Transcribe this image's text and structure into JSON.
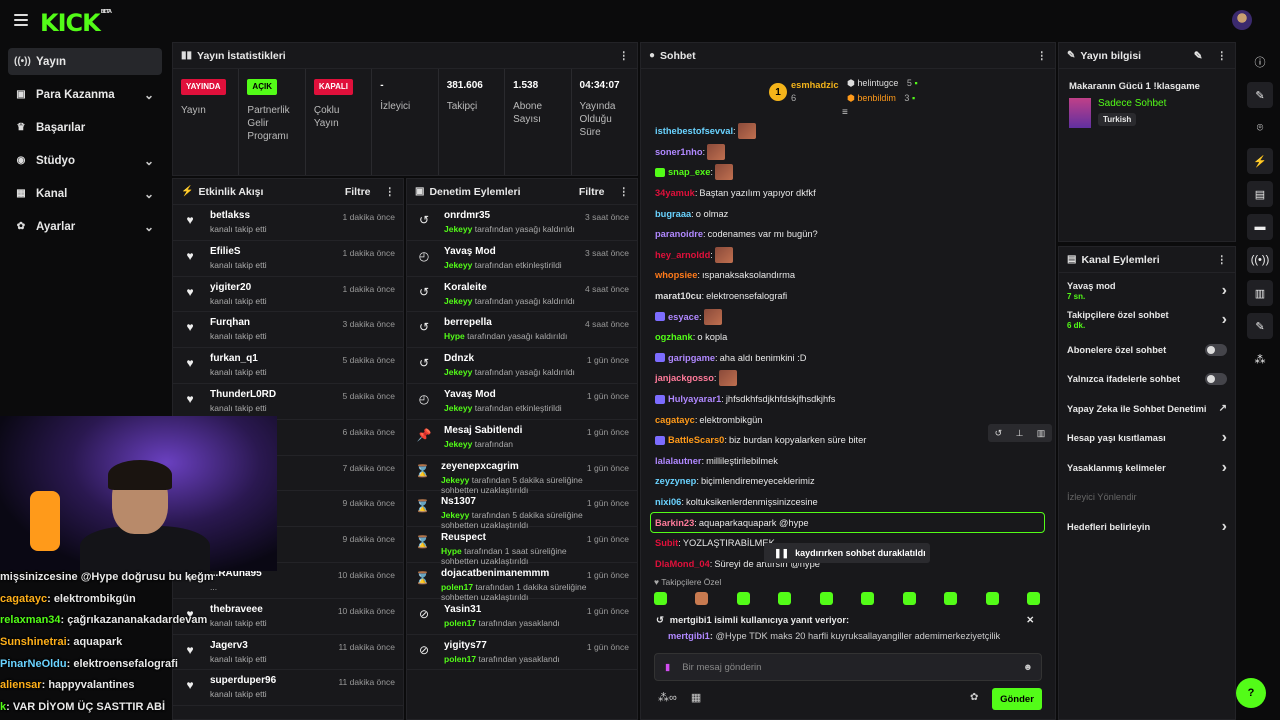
{
  "brand": {
    "logo": "KICK",
    "beta": "BETA"
  },
  "sidebar": {
    "items": [
      {
        "label": "Yayın",
        "icon": "broadcast-icon",
        "active": true,
        "chev": ""
      },
      {
        "label": "Para Kazanma",
        "icon": "money-icon",
        "active": false,
        "chev": "⌄"
      },
      {
        "label": "Başarılar",
        "icon": "trophy-icon",
        "active": false,
        "chev": ""
      },
      {
        "label": "Stüdyo",
        "icon": "studio-icon",
        "active": false,
        "chev": "⌄"
      },
      {
        "label": "Kanal",
        "icon": "channel-icon",
        "active": false,
        "chev": "⌄"
      },
      {
        "label": "Ayarlar",
        "icon": "gear-icon",
        "active": false,
        "chev": "⌄"
      }
    ]
  },
  "stats": {
    "title": "Yayın İstatistikleri",
    "items": [
      {
        "badge": "YAYINDA",
        "badge_color": "#e0103b",
        "label": "Yayın"
      },
      {
        "badge": "AÇIK",
        "badge_color": "#53fc18",
        "label": "Partnerlik Gelir Programı"
      },
      {
        "badge": "KAPALI",
        "badge_color": "#e0103b",
        "label": "Çoklu Yayın"
      },
      {
        "val": "-",
        "label": "İzleyici"
      },
      {
        "val": "381.606",
        "label": "Takipçi"
      },
      {
        "val": "1.538",
        "label": "Abone Sayısı"
      },
      {
        "val": "04:34:07",
        "label": "Yayında Olduğu Süre"
      }
    ]
  },
  "activity": {
    "title": "Etkinlik Akışı",
    "filter": "Filtre",
    "rows": [
      {
        "name": "betlakss",
        "sub": "kanalı takip etti",
        "time": "1 dakika önce"
      },
      {
        "name": "EfilieS",
        "sub": "kanalı takip etti",
        "time": "1 dakika önce"
      },
      {
        "name": "yigiter20",
        "sub": "kanalı takip etti",
        "time": "1 dakika önce"
      },
      {
        "name": "Furqhan",
        "sub": "kanalı takip etti",
        "time": "3 dakika önce"
      },
      {
        "name": "furkan_q1",
        "sub": "kanalı takip etti",
        "time": "5 dakika önce"
      },
      {
        "name": "ThunderL0RD",
        "sub": "kanalı takip etti",
        "time": "5 dakika önce"
      },
      {
        "name": "",
        "sub": "",
        "time": "6 dakika önce"
      },
      {
        "name": "",
        "sub": "",
        "time": "7 dakika önce"
      },
      {
        "name": "",
        "sub": "",
        "time": "9 dakika önce"
      },
      {
        "name": "",
        "sub": "",
        "time": "9 dakika önce"
      },
      {
        "name": "...RAuha95",
        "sub": "...",
        "time": "10 dakika önce"
      },
      {
        "name": "thebraveee",
        "sub": "kanalı takip etti",
        "time": "10 dakika önce"
      },
      {
        "name": "Jagerv3",
        "sub": "kanalı takip etti",
        "time": "11 dakika önce"
      },
      {
        "name": "superduper96",
        "sub": "kanalı takip etti",
        "time": "11 dakika önce"
      }
    ]
  },
  "moderation": {
    "title": "Denetim Eylemleri",
    "filter": "Filtre",
    "rows": [
      {
        "icon": "↺",
        "name": "onrdmr35",
        "actor": "Jekeyy",
        "sub": "tarafından yasağı kaldırıldı",
        "time": "3 saat önce"
      },
      {
        "icon": "◴",
        "name": "Yavaş Mod",
        "actor": "Jekeyy",
        "sub": "tarafından etkinleştirildi",
        "time": "3 saat önce"
      },
      {
        "icon": "↺",
        "name": "Koraleite",
        "actor": "Jekeyy",
        "sub": "tarafından yasağı kaldırıldı",
        "time": "4 saat önce"
      },
      {
        "icon": "↺",
        "name": "berrepella",
        "actor": "Hype",
        "sub": "tarafından yasağı kaldırıldı",
        "time": "4 saat önce"
      },
      {
        "icon": "↺",
        "name": "Ddnzk",
        "actor": "Jekeyy",
        "sub": "tarafından yasağı kaldırıldı",
        "time": "1 gün önce"
      },
      {
        "icon": "◴",
        "name": "Yavaş Mod",
        "actor": "Jekeyy",
        "sub": "tarafından etkinleştirildi",
        "time": "1 gün önce"
      },
      {
        "icon": "📌",
        "name": "Mesaj Sabitlendi",
        "actor": "Jekeyy",
        "sub": "tarafından",
        "time": "1 gün önce"
      },
      {
        "icon": "⌛",
        "name": "zeyenepxcagrim",
        "actor": "Jekeyy",
        "sub": "tarafından 5 dakika süreliğine sohbetten uzaklaştırıldı",
        "time": "1 gün önce"
      },
      {
        "icon": "⌛",
        "name": "Ns1307",
        "actor": "Jekeyy",
        "sub": "tarafından 5 dakika süreliğine sohbetten uzaklaştırıldı",
        "time": "1 gün önce"
      },
      {
        "icon": "⌛",
        "name": "Reuspect",
        "actor": "Hype",
        "sub": "tarafından 1 saat süreliğine sohbetten uzaklaştırıldı",
        "time": "1 gün önce"
      },
      {
        "icon": "⌛",
        "name": "dojacatbenimanemmm",
        "actor": "polen17",
        "sub": "tarafından 1 dakika süreliğine sohbetten uzaklaştırıldı",
        "time": "1 gün önce"
      },
      {
        "icon": "⊘",
        "name": "Yasin31",
        "actor": "polen17",
        "sub": "tarafından yasaklandı",
        "time": "1 gün önce"
      },
      {
        "icon": "⊘",
        "name": "yigitys77",
        "actor": "polen17",
        "sub": "tarafından yasaklandı",
        "time": "1 gün önce"
      }
    ]
  },
  "chat": {
    "title": "Sohbet",
    "leaders": {
      "first_name": "esmhadzic",
      "first_count": "6",
      "first_rank": "1",
      "second_name": "helintugce",
      "second_count": "5",
      "third_name": "benbildim",
      "third_count": "3"
    },
    "messages": [
      {
        "user": "isthebestofsevval",
        "color": "#6ad3ff",
        "text": "",
        "emote": true
      },
      {
        "user": "soner1nho",
        "color": "#b088ff",
        "text": "",
        "emote": true
      },
      {
        "user": "snap_exe",
        "color": "#53fc18",
        "text": "",
        "emote": true,
        "badge": "#53fc18"
      },
      {
        "user": "34yamuk",
        "color": "#e0103b",
        "text": "Baştan yazılım yapıyor dkfkf"
      },
      {
        "user": "bugraaa",
        "color": "#6ad3ff",
        "text": "o olmaz"
      },
      {
        "user": "paranoidre",
        "color": "#b088ff",
        "text": "codenames var mı bugün?"
      },
      {
        "user": "hey_arnoldd",
        "color": "#e0103b",
        "text": "",
        "emote": true
      },
      {
        "user": "whopsiee",
        "color": "#ff7a1a",
        "text": "ıspanaksaksolandırma"
      },
      {
        "user": "marat10cu",
        "color": "#ddd",
        "text": "elektroensefalografi"
      },
      {
        "user": "esyace",
        "color": "#b088ff",
        "text": "",
        "emote": true,
        "badge": "#7c6cff"
      },
      {
        "user": "ogzhank",
        "color": "#53fc18",
        "text": "o kopla"
      },
      {
        "user": "garipgame",
        "color": "#b088ff",
        "text": "aha aldı benimkini :D",
        "badge": "#7c6cff"
      },
      {
        "user": "janjackgosso",
        "color": "#ff7a9a",
        "text": "",
        "emote": true
      },
      {
        "user": "Hulyayarar1",
        "color": "#b088ff",
        "text": "jhfsdkhfsdjkhfdskjfhsdkjhfs",
        "badge": "#7c6cff"
      },
      {
        "user": "cagatayc",
        "color": "#ff9a1a",
        "text": "elektrombikgün"
      },
      {
        "user": "BattleScars0",
        "color": "#ff9a1a",
        "text": "biz burdan kopyalarken süre biter",
        "badge": "#7c6cff"
      },
      {
        "user": "lalalautner",
        "color": "#b088ff",
        "text": "millileştirilebilmek"
      },
      {
        "user": "zeyzynep",
        "color": "#6ad3ff",
        "text": "biçimlendiremeyeceklerimiz"
      },
      {
        "user": "nixi06",
        "color": "#6ad3ff",
        "text": "koltuksikenlerdenmişsinizcesine"
      },
      {
        "user": "Barkin23",
        "color": "#ff7a9a",
        "text": "aquaparkaquapark @hype",
        "highlight": true
      },
      {
        "user": "Subit",
        "color": "#e0103b",
        "text": "YOZLAŞTIRABİLMEK"
      },
      {
        "user": "DlaMond_04",
        "color": "#e0103b",
        "text": "Süreyi de arttırsın @hype"
      }
    ],
    "paused": "kaydırırken sohbet duraklatıldı",
    "followers_only": "Takipçilere Özel",
    "reply_header": "mertgibi1 isimli kullanıcıya yanıt veriyor:",
    "reply_user": "mertgibi1",
    "reply_text": "@Hype TDK maks 20 harfli kuyruksallayangiller ademimerkeziyetçilik",
    "input_placeholder": "Bir mesaj gönderin",
    "send": "Gönder"
  },
  "stream_info": {
    "title": "Yayın bilgisi",
    "stream_title": "Makaranın Gücü 1 !klasgame",
    "category": "Sadece Sohbet",
    "tag": "Turkish"
  },
  "channel_actions": {
    "title": "Kanal Eylemleri",
    "items": [
      {
        "label": "Yavaş mod",
        "sub": "7 sn.",
        "ctl": "chevron"
      },
      {
        "label": "Takipçilere özel sohbet",
        "sub": "6 dk.",
        "ctl": "chevron"
      },
      {
        "label": "Abonelere özel sohbet",
        "sub": "",
        "ctl": "toggle"
      },
      {
        "label": "Yalnızca ifadelerle sohbet",
        "sub": "",
        "ctl": "toggle"
      },
      {
        "label": "Yapay Zeka ile Sohbet Denetimi",
        "sub": "",
        "ctl": "external"
      },
      {
        "label": "Hesap yaşı kısıtlaması",
        "sub": "",
        "ctl": "chevron"
      },
      {
        "label": "Yasaklanmış kelimeler",
        "sub": "",
        "ctl": "chevron"
      },
      {
        "label": "İzleyici Yönlendir",
        "sub": "",
        "ctl": "disabled"
      },
      {
        "label": "Hedefleri belirleyin",
        "sub": "",
        "ctl": "chevron"
      }
    ]
  },
  "overlay_chat": [
    {
      "user": "",
      "color": "#fff",
      "text": "mişsinizcesine @Hype doğrusu bu keğm"
    },
    {
      "user": "cagatayc",
      "color": "#ffb01a",
      "text": " : elektrombikgün"
    },
    {
      "user": "relaxman34",
      "color": "#53fc18",
      "text": " : çağrıkazananakadardevam"
    },
    {
      "user": "Sunshinetrai",
      "color": "#ffb01a",
      "text": " : aquapark"
    },
    {
      "user": "PinarNeOldu",
      "color": "#6ad3ff",
      "text": " : elektroensefalografi"
    },
    {
      "user": "aliensar",
      "color": "#ffb01a",
      "text": " : happyvalantines"
    },
    {
      "user": "k",
      "color": "#53fc18",
      "text": " : VAR DİYOM ÜÇ SASTTIR ABİ"
    }
  ]
}
